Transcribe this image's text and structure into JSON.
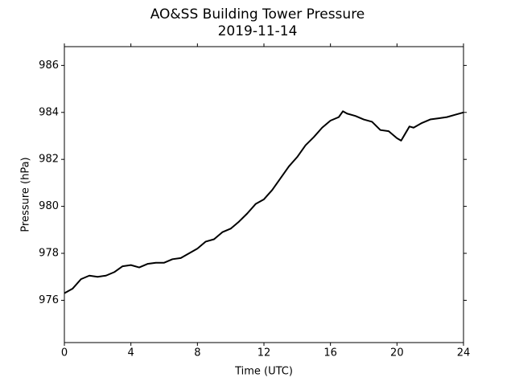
{
  "chart_data": {
    "type": "line",
    "title": "AO&SS Building Tower Pressure",
    "subtitle": "2019-11-14",
    "x_label": "Time (UTC)",
    "y_label": "Pressure (hPa)",
    "x": [
      0,
      0.5,
      1,
      1.5,
      2,
      2.5,
      3,
      3.5,
      4,
      4.5,
      5,
      5.5,
      6,
      6.5,
      7,
      7.5,
      8,
      8.5,
      9,
      9.5,
      10,
      10.5,
      11,
      11.5,
      12,
      12.5,
      13,
      13.5,
      14,
      14.5,
      15,
      15.5,
      16,
      16.5,
      16.75,
      17,
      17.5,
      18,
      18.5,
      19,
      19.5,
      20,
      20.25,
      20.5,
      20.75,
      21,
      21.5,
      22,
      22.5,
      23,
      23.5,
      24
    ],
    "series": [
      {
        "name": "Pressure",
        "color": "#000000",
        "values": [
          976.3,
          976.5,
          976.9,
          977.05,
          977.0,
          977.05,
          977.2,
          977.45,
          977.5,
          977.4,
          977.55,
          977.6,
          977.6,
          977.75,
          977.8,
          978.0,
          978.2,
          978.5,
          978.6,
          978.9,
          979.05,
          979.35,
          979.7,
          980.1,
          980.3,
          980.7,
          981.2,
          981.7,
          982.1,
          982.6,
          982.95,
          983.35,
          983.65,
          983.8,
          984.05,
          983.95,
          983.85,
          983.7,
          983.6,
          983.25,
          983.2,
          982.9,
          982.8,
          983.1,
          983.4,
          983.35,
          983.55,
          983.7,
          983.75,
          983.8,
          983.9,
          984.0
        ]
      }
    ],
    "xlim": [
      0,
      24
    ],
    "xticks": [
      0,
      4,
      8,
      12,
      16,
      20,
      24
    ],
    "ylim": [
      974.2,
      986.8
    ],
    "yticks": [
      976,
      978,
      980,
      982,
      984,
      986
    ],
    "grid": false
  }
}
